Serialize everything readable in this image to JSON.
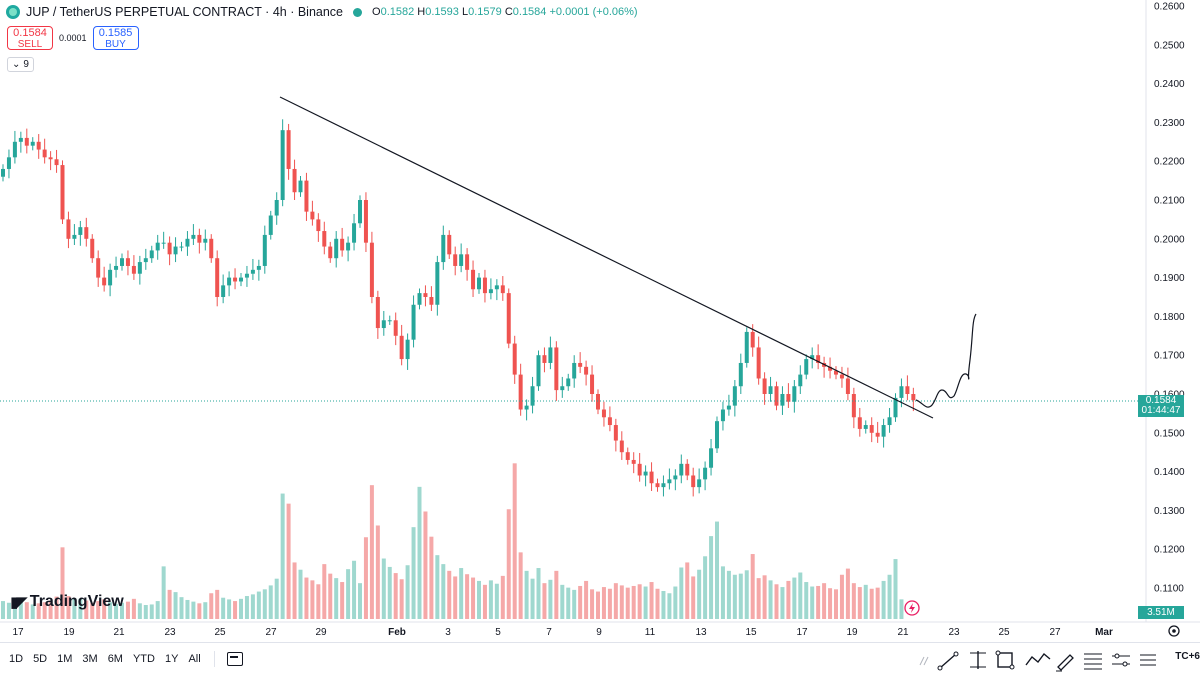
{
  "header": {
    "title": "JUP / TetherUS PERPETUAL CONTRACT · 4h · Binance",
    "ohlc": {
      "o_label": "O",
      "o": "0.1582",
      "h_label": "H",
      "h": "0.1593",
      "l_label": "L",
      "l": "0.1579",
      "c_label": "C",
      "c": "0.1584",
      "change": "+0.0001 (+0.06%)"
    }
  },
  "trade": {
    "sell_price": "0.1584",
    "sell_label": "SELL",
    "spread": "0.0001",
    "buy_price": "0.1585",
    "buy_label": "BUY"
  },
  "indicators_toggle": {
    "chevron": "⌄",
    "count": "9"
  },
  "price_axis": {
    "labels": [
      "0.2600",
      "0.2500",
      "0.2400",
      "0.2300",
      "0.2200",
      "0.2100",
      "0.2000",
      "0.1900",
      "0.1800",
      "0.1700",
      "0.1600",
      "0.1500",
      "0.1400",
      "0.1300",
      "0.1200",
      "0.1100"
    ],
    "current_price": "0.1584",
    "countdown": "01:44:47",
    "volume_label": "3.51M"
  },
  "time_axis": {
    "labels": [
      "17",
      "19",
      "21",
      "23",
      "25",
      "27",
      "29",
      "Feb",
      "3",
      "5",
      "7",
      "9",
      "11",
      "13",
      "15",
      "17",
      "19",
      "21",
      "23",
      "25",
      "27",
      "Mar"
    ]
  },
  "logo": {
    "text": "TradingView"
  },
  "timeframes": [
    "1D",
    "5D",
    "1M",
    "3M",
    "6M",
    "YTD",
    "1Y",
    "All"
  ],
  "utc_label": "TC+6",
  "colors": {
    "up": "#26a69a",
    "down": "#ef5350",
    "vol_up": "#9fd8cf",
    "vol_down": "#f5a8a8",
    "line": "#131722"
  },
  "chart_data": {
    "type": "candlestick",
    "symbol": "JUPUSDT.P",
    "interval": "4h",
    "trendline": {
      "from": [
        "Jan 28",
        0.2365
      ],
      "to": [
        "Feb 21",
        0.1535
      ]
    },
    "projection_note": "hand-drawn path rising toward ~0.181",
    "ylim": [
      0.105,
      0.262
    ],
    "closes": [
      0.218,
      0.221,
      0.225,
      0.226,
      0.224,
      0.225,
      0.223,
      0.221,
      0.2205,
      0.219,
      0.205,
      0.2,
      0.201,
      0.203,
      0.2,
      0.195,
      0.19,
      0.188,
      0.192,
      0.193,
      0.195,
      0.193,
      0.191,
      0.194,
      0.195,
      0.197,
      0.199,
      0.199,
      0.196,
      0.198,
      0.198,
      0.2,
      0.201,
      0.199,
      0.2,
      0.195,
      0.185,
      0.188,
      0.19,
      0.189,
      0.19,
      0.191,
      0.192,
      0.193,
      0.201,
      0.206,
      0.21,
      0.228,
      0.218,
      0.212,
      0.215,
      0.207,
      0.205,
      0.202,
      0.198,
      0.195,
      0.2,
      0.197,
      0.199,
      0.204,
      0.21,
      0.199,
      0.185,
      0.177,
      0.179,
      0.179,
      0.175,
      0.169,
      0.174,
      0.183,
      0.186,
      0.185,
      0.183,
      0.194,
      0.201,
      0.196,
      0.193,
      0.196,
      0.192,
      0.187,
      0.19,
      0.186,
      0.187,
      0.188,
      0.186,
      0.173,
      0.165,
      0.156,
      0.157,
      0.162,
      0.17,
      0.168,
      0.172,
      0.161,
      0.162,
      0.164,
      0.168,
      0.167,
      0.165,
      0.16,
      0.156,
      0.154,
      0.152,
      0.148,
      0.145,
      0.143,
      0.142,
      0.139,
      0.14,
      0.137,
      0.136,
      0.137,
      0.138,
      0.139,
      0.142,
      0.139,
      0.136,
      0.138,
      0.141,
      0.146,
      0.153,
      0.156,
      0.157,
      0.162,
      0.168,
      0.176,
      0.172,
      0.164,
      0.16,
      0.162,
      0.157,
      0.16,
      0.158,
      0.162,
      0.165,
      0.169,
      0.17,
      0.168,
      0.167,
      0.166,
      0.165,
      0.164,
      0.16,
      0.154,
      0.151,
      0.152,
      0.15,
      0.149,
      0.152,
      0.154,
      0.159,
      0.162,
      0.16,
      0.1584
    ],
    "volumes_millions": [
      3.2,
      2.9,
      3.1,
      3.4,
      3.0,
      2.6,
      2.8,
      3.0,
      3.3,
      4.0,
      12.8,
      4.1,
      3.7,
      3.6,
      3.3,
      2.9,
      3.2,
      3.5,
      3.0,
      2.7,
      2.9,
      3.1,
      3.6,
      2.8,
      2.5,
      2.6,
      3.2,
      9.4,
      5.2,
      4.8,
      3.9,
      3.4,
      3.1,
      2.8,
      3.0,
      4.6,
      5.2,
      3.8,
      3.5,
      3.2,
      3.6,
      4.1,
      4.4,
      4.9,
      5.3,
      6.0,
      7.2,
      22.4,
      20.6,
      10.1,
      8.8,
      7.4,
      6.9,
      6.2,
      9.8,
      8.1,
      7.3,
      6.6,
      8.9,
      10.4,
      6.4,
      14.6,
      23.9,
      16.7,
      10.8,
      9.3,
      8.2,
      7.1,
      9.6,
      16.4,
      23.6,
      19.2,
      14.7,
      11.4,
      9.8,
      8.6,
      7.6,
      9.1,
      8.0,
      7.4,
      6.8,
      6.1,
      6.9,
      6.3,
      7.7,
      19.6,
      27.8,
      11.9,
      8.6,
      7.2,
      9.1,
      6.4,
      7.0,
      8.6,
      6.1,
      5.6,
      5.2,
      5.9,
      6.8,
      5.3,
      4.9,
      5.7,
      5.4,
      6.4,
      6.0,
      5.6,
      5.9,
      6.2,
      5.8,
      6.6,
      5.4,
      5.0,
      4.6,
      5.8,
      9.2,
      10.1,
      7.6,
      8.8,
      11.2,
      14.8,
      17.4,
      9.4,
      8.6,
      7.9,
      8.1,
      8.7,
      11.6,
      7.3,
      7.8,
      6.9,
      6.2,
      5.7,
      6.8,
      7.4,
      8.3,
      6.6,
      5.8,
      5.9,
      6.4,
      5.5,
      5.3,
      7.9,
      9.0,
      6.4,
      5.7,
      6.1,
      5.4,
      5.6,
      6.8,
      7.9,
      10.7,
      3.51
    ]
  }
}
